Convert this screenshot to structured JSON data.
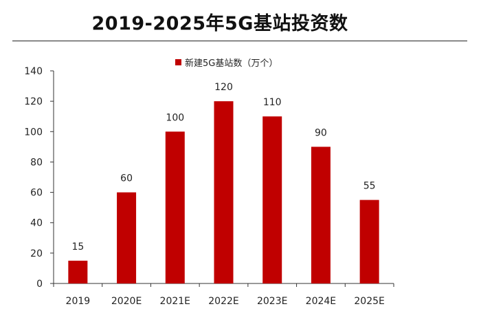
{
  "page": {
    "title": "2019-2025年5G基站投资数"
  },
  "colors": {
    "bar": "#c00000",
    "axis": "#333333",
    "text": "#222222"
  },
  "chart_data": {
    "type": "bar",
    "title": "2019-2025年5G基站投资数",
    "xlabel": "",
    "ylabel": "",
    "categories": [
      "2019",
      "2020E",
      "2021E",
      "2022E",
      "2023E",
      "2024E",
      "2025E"
    ],
    "series": [
      {
        "name": "新建5G基站数（万个）",
        "values": [
          15,
          60,
          100,
          120,
          110,
          90,
          55
        ]
      }
    ],
    "ylim": [
      0,
      140
    ],
    "yticks": [
      0,
      20,
      40,
      60,
      80,
      100,
      120,
      140
    ],
    "grid": false,
    "legend_position": "top"
  }
}
